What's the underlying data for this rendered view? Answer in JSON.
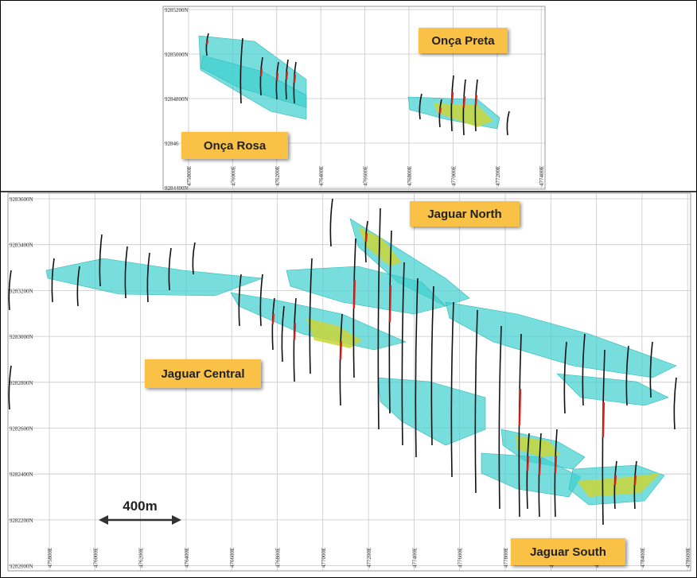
{
  "inset": {
    "northings": [
      "9285200N",
      "9285000N",
      "9284800N",
      "92846",
      "9284400N"
    ],
    "eastings": [
      "475800E",
      "476000E",
      "476200E",
      "476400E",
      "476600E",
      "476800E",
      "477000E",
      "477200E",
      "477400E"
    ]
  },
  "main": {
    "northings": [
      "9283600N",
      "9283400N",
      "9283200N",
      "9283000N",
      "9282800N",
      "9282600N",
      "9282400N",
      "9282200N",
      "9282000N"
    ],
    "eastings": [
      "475800E",
      "476000E",
      "476200E",
      "476400E",
      "476600E",
      "476800E",
      "477000E",
      "477200E",
      "477400E",
      "477600E",
      "477800E",
      "478000E",
      "478200E",
      "478400E",
      "478600E"
    ]
  },
  "labels": {
    "onca_preta": "Onça Preta",
    "onca_rosa": "Onça Rosa",
    "jaguar_north": "Jaguar North",
    "jaguar_central": "Jaguar Central",
    "jaguar_south": "Jaguar South"
  },
  "scale_bar": "400m"
}
